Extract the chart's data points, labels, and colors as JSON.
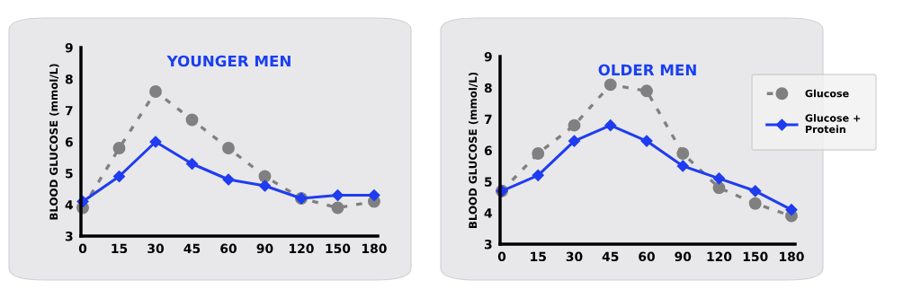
{
  "chart_data": [
    {
      "type": "line",
      "title": "YOUNGER MEN",
      "ylabel": "BLOOD GLUCOSE (mmol/L)",
      "categories": [
        "0",
        "15",
        "30",
        "45",
        "60",
        "90",
        "120",
        "150",
        "180"
      ],
      "ylim": [
        3,
        9
      ],
      "yticks": [
        3,
        4,
        5,
        6,
        7,
        8,
        9
      ],
      "grid": false,
      "series": [
        {
          "color": "#808080",
          "marker": "circle",
          "line_style": "dashed",
          "values": [
            3.9,
            5.8,
            7.6,
            6.7,
            5.8,
            4.9,
            4.2,
            3.9,
            4.1
          ]
        },
        {
          "color": "#1f3cf0",
          "marker": "diamond",
          "line_style": "solid",
          "values": [
            4.1,
            4.9,
            6.0,
            5.3,
            4.8,
            4.6,
            4.2,
            4.3,
            4.3
          ]
        }
      ]
    },
    {
      "type": "line",
      "title": "OLDER MEN",
      "ylabel": "BLOOD GLUCOSE (mmol/L)",
      "categories": [
        "0",
        "15",
        "30",
        "45",
        "60",
        "90",
        "120",
        "150",
        "180"
      ],
      "ylim": [
        3,
        9
      ],
      "yticks": [
        3,
        4,
        5,
        6,
        7,
        8,
        9
      ],
      "grid": false,
      "legend": "right",
      "series": [
        {
          "name": "Glucose",
          "color": "#808080",
          "marker": "circle",
          "line_style": "dashed",
          "values": [
            4.7,
            5.9,
            6.8,
            8.1,
            7.9,
            5.9,
            4.8,
            4.3,
            3.9
          ]
        },
        {
          "name": "Glucose +\nProtein",
          "color": "#1f3cf0",
          "marker": "diamond",
          "line_style": "solid",
          "values": [
            4.7,
            5.2,
            6.3,
            6.8,
            6.3,
            5.5,
            5.1,
            4.7,
            4.1
          ]
        }
      ]
    }
  ]
}
